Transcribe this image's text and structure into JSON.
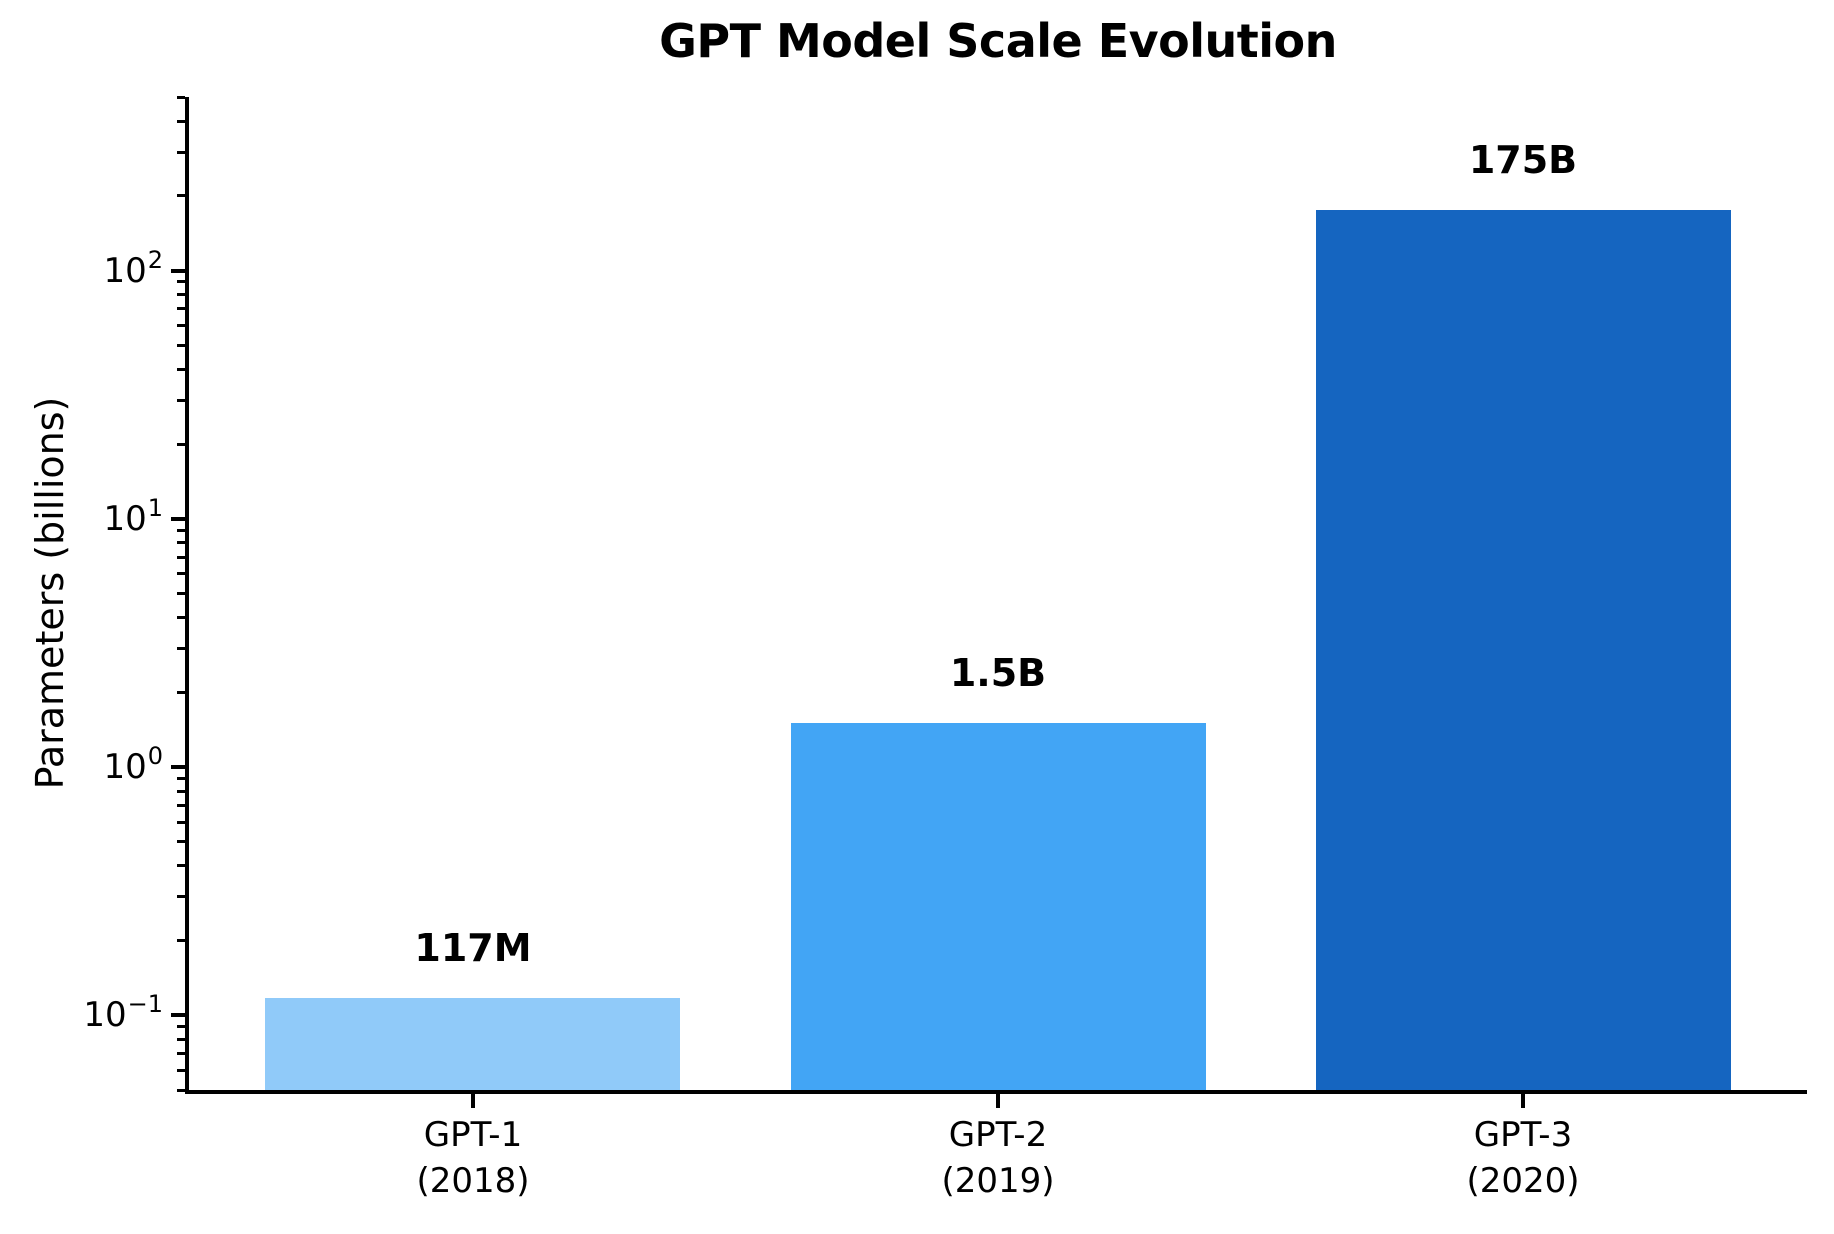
{
  "figure": {
    "background": "#ffffff",
    "text_color": "#000000",
    "axis_color": "#000000"
  },
  "chart_data": {
    "type": "bar",
    "title": "GPT Model Scale Evolution",
    "xlabel": "",
    "ylabel": "Parameters (billions)",
    "yscale": "log",
    "ylim": [
      0.05,
      500
    ],
    "grid": false,
    "legend": null,
    "categories": [
      "GPT-1",
      "GPT-2",
      "GPT-3"
    ],
    "category_sublabels": [
      "(2018)",
      "(2019)",
      "(2020)"
    ],
    "values": [
      0.117,
      1.5,
      175
    ],
    "bar_labels": [
      "117M",
      "1.5B",
      "175B"
    ],
    "bar_colors": [
      "#90caf9",
      "#42a5f5",
      "#1565c0"
    ],
    "ytick_exponents": [
      -1,
      0,
      1,
      2
    ],
    "ytick_labels": [
      "10⁻¹",
      "10⁰",
      "10¹",
      "10²"
    ]
  }
}
